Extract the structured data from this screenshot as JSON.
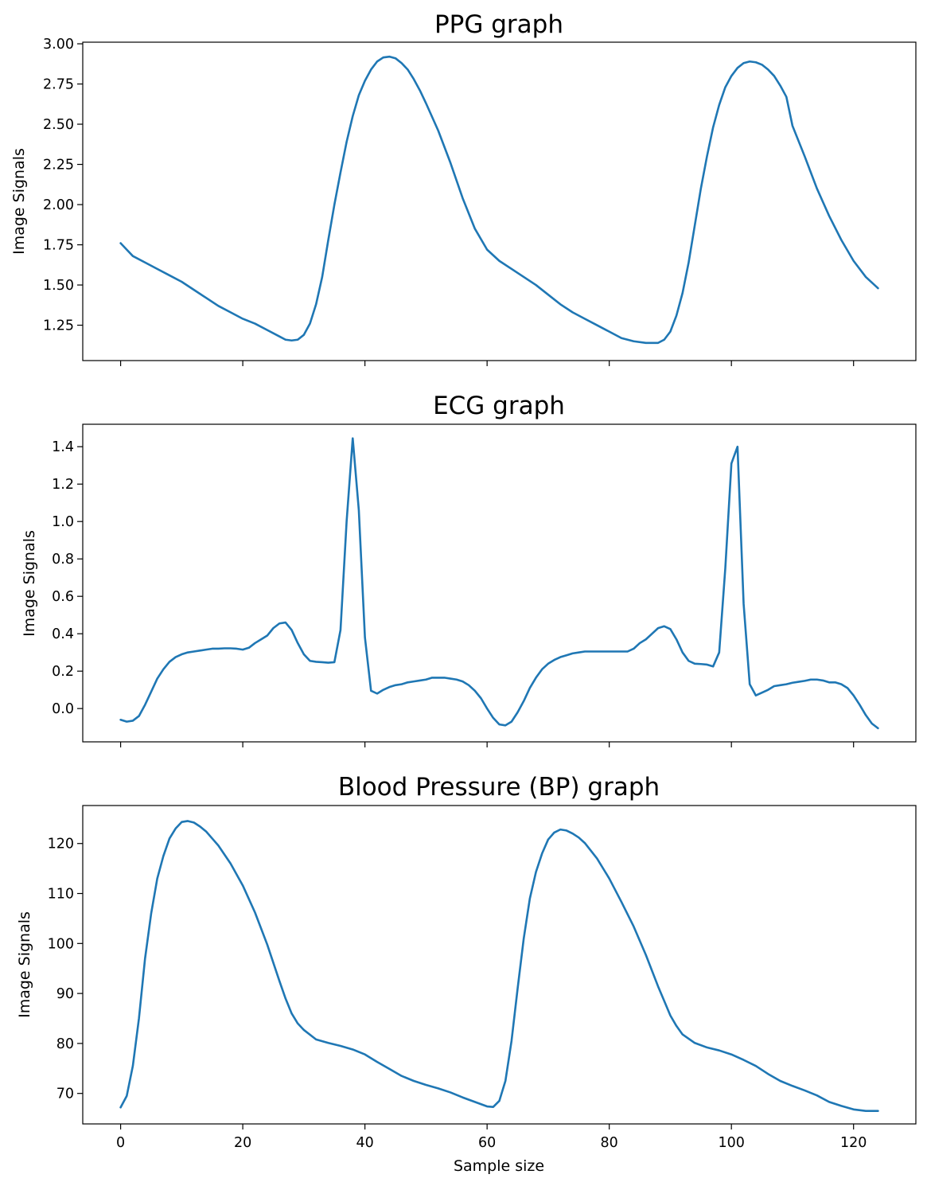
{
  "chart_data": [
    {
      "type": "line",
      "title": "PPG graph",
      "xlabel": "",
      "ylabel": "Image Signals",
      "xlim": [
        -6.2,
        130.2
      ],
      "ylim": [
        1.03,
        3.01
      ],
      "xticks": [
        0,
        20,
        40,
        60,
        80,
        100,
        120
      ],
      "show_xtick_labels": false,
      "yticks": [
        1.25,
        1.5,
        1.75,
        2.0,
        2.25,
        2.5,
        2.75,
        3.0
      ],
      "ytick_labels": [
        "1.25",
        "1.50",
        "1.75",
        "2.00",
        "2.25",
        "2.50",
        "2.75",
        "3.00"
      ],
      "grid": false,
      "color": "#1f77b4",
      "series": [
        {
          "x": [
            0,
            1,
            2,
            4,
            6,
            8,
            10,
            12,
            14,
            16,
            18,
            20,
            22,
            24,
            26,
            27,
            28,
            29,
            30,
            31,
            32,
            33,
            34,
            35,
            36,
            37,
            38,
            39,
            40,
            41,
            42,
            43,
            44,
            45,
            46,
            47,
            48,
            49,
            50,
            52,
            54,
            56,
            58,
            60,
            62,
            64,
            66,
            68,
            70,
            72,
            74,
            76,
            78,
            80,
            82,
            84,
            86,
            88,
            89,
            90,
            91,
            92,
            93,
            94,
            95,
            96,
            97,
            98,
            99,
            100,
            101,
            102,
            103,
            104,
            105,
            106,
            107,
            108,
            109,
            110,
            112,
            114,
            116,
            118,
            120,
            122,
            124
          ],
          "y": [
            1.76,
            1.72,
            1.68,
            1.64,
            1.6,
            1.56,
            1.52,
            1.47,
            1.42,
            1.37,
            1.33,
            1.29,
            1.26,
            1.22,
            1.18,
            1.16,
            1.155,
            1.16,
            1.19,
            1.26,
            1.38,
            1.55,
            1.78,
            2.0,
            2.2,
            2.39,
            2.55,
            2.68,
            2.77,
            2.84,
            2.89,
            2.915,
            2.92,
            2.91,
            2.88,
            2.84,
            2.78,
            2.71,
            2.63,
            2.46,
            2.26,
            2.04,
            1.85,
            1.72,
            1.65,
            1.6,
            1.55,
            1.5,
            1.44,
            1.38,
            1.33,
            1.29,
            1.25,
            1.21,
            1.17,
            1.15,
            1.14,
            1.14,
            1.16,
            1.21,
            1.31,
            1.45,
            1.64,
            1.87,
            2.1,
            2.3,
            2.48,
            2.62,
            2.73,
            2.8,
            2.85,
            2.88,
            2.89,
            2.885,
            2.87,
            2.84,
            2.8,
            2.74,
            2.67,
            2.49,
            2.3,
            2.1,
            1.93,
            1.78,
            1.65,
            1.55,
            1.48
          ]
        }
      ]
    },
    {
      "type": "line",
      "title": "ECG graph",
      "xlabel": "",
      "ylabel": "Image Signals",
      "xlim": [
        -6.2,
        130.2
      ],
      "ylim": [
        -0.178,
        1.52
      ],
      "xticks": [
        0,
        20,
        40,
        60,
        80,
        100,
        120
      ],
      "show_xtick_labels": false,
      "yticks": [
        0.0,
        0.2,
        0.4,
        0.6,
        0.8,
        1.0,
        1.2,
        1.4
      ],
      "ytick_labels": [
        "0.0",
        "0.2",
        "0.4",
        "0.6",
        "0.8",
        "1.0",
        "1.2",
        "1.4"
      ],
      "grid": false,
      "color": "#1f77b4",
      "series": [
        {
          "x": [
            0,
            1,
            2,
            3,
            4,
            5,
            6,
            7,
            8,
            9,
            10,
            11,
            12,
            13,
            14,
            15,
            16,
            17,
            18,
            19,
            20,
            21,
            22,
            23,
            24,
            25,
            26,
            27,
            28,
            29,
            30,
            31,
            32,
            33,
            34,
            35,
            36,
            37,
            38,
            39,
            40,
            41,
            42,
            43,
            44,
            45,
            46,
            47,
            48,
            49,
            50,
            51,
            52,
            53,
            54,
            55,
            56,
            57,
            58,
            59,
            60,
            61,
            62,
            63,
            64,
            65,
            66,
            67,
            68,
            69,
            70,
            71,
            72,
            73,
            74,
            75,
            76,
            77,
            78,
            79,
            80,
            81,
            82,
            83,
            84,
            85,
            86,
            87,
            88,
            89,
            90,
            91,
            92,
            93,
            94,
            95,
            96,
            97,
            98,
            99,
            100,
            101,
            102,
            103,
            104,
            105,
            106,
            107,
            108,
            109,
            110,
            111,
            112,
            113,
            114,
            115,
            116,
            117,
            118,
            119,
            120,
            121,
            122,
            123,
            124
          ],
          "y": [
            -0.06,
            -0.07,
            -0.065,
            -0.04,
            0.02,
            0.09,
            0.16,
            0.21,
            0.25,
            0.275,
            0.29,
            0.3,
            0.305,
            0.31,
            0.315,
            0.32,
            0.32,
            0.322,
            0.322,
            0.32,
            0.315,
            0.325,
            0.35,
            0.37,
            0.39,
            0.43,
            0.455,
            0.46,
            0.42,
            0.35,
            0.29,
            0.255,
            0.25,
            0.248,
            0.245,
            0.248,
            0.42,
            1.0,
            1.445,
            1.06,
            0.38,
            0.095,
            0.08,
            0.1,
            0.115,
            0.125,
            0.13,
            0.14,
            0.145,
            0.15,
            0.155,
            0.165,
            0.165,
            0.165,
            0.16,
            0.155,
            0.145,
            0.125,
            0.095,
            0.055,
            0.0,
            -0.05,
            -0.085,
            -0.09,
            -0.07,
            -0.02,
            0.04,
            0.11,
            0.165,
            0.21,
            0.24,
            0.26,
            0.275,
            0.285,
            0.295,
            0.3,
            0.305,
            0.305,
            0.305,
            0.305,
            0.305,
            0.305,
            0.305,
            0.305,
            0.32,
            0.35,
            0.37,
            0.4,
            0.43,
            0.44,
            0.425,
            0.37,
            0.3,
            0.255,
            0.24,
            0.238,
            0.235,
            0.225,
            0.3,
            0.75,
            1.31,
            1.4,
            0.56,
            0.13,
            0.07,
            0.085,
            0.1,
            0.12,
            0.125,
            0.13,
            0.138,
            0.143,
            0.148,
            0.155,
            0.155,
            0.15,
            0.14,
            0.14,
            0.13,
            0.11,
            0.07,
            0.02,
            -0.035,
            -0.08,
            -0.105
          ]
        }
      ]
    },
    {
      "type": "line",
      "title": "Blood Pressure (BP) graph",
      "xlabel": "Sample size",
      "ylabel": "Image Signals",
      "xlim": [
        -6.2,
        130.2
      ],
      "ylim": [
        63.9,
        127.6
      ],
      "xticks": [
        0,
        20,
        40,
        60,
        80,
        100,
        120
      ],
      "xtick_labels": [
        "0",
        "20",
        "40",
        "60",
        "80",
        "100",
        "120"
      ],
      "show_xtick_labels": true,
      "yticks": [
        70,
        80,
        90,
        100,
        110,
        120
      ],
      "ytick_labels": [
        "70",
        "80",
        "90",
        "100",
        "110",
        "120"
      ],
      "grid": false,
      "color": "#1f77b4",
      "series": [
        {
          "x": [
            0,
            1,
            2,
            3,
            4,
            5,
            6,
            7,
            8,
            9,
            10,
            11,
            12,
            13,
            14,
            15,
            16,
            18,
            20,
            22,
            24,
            26,
            27,
            28,
            29,
            30,
            32,
            34,
            36,
            38,
            40,
            42,
            44,
            46,
            48,
            50,
            52,
            54,
            56,
            58,
            60,
            61,
            62,
            63,
            64,
            65,
            66,
            67,
            68,
            69,
            70,
            71,
            72,
            73,
            74,
            75,
            76,
            78,
            80,
            82,
            84,
            86,
            88,
            89,
            90,
            91,
            92,
            94,
            96,
            98,
            100,
            102,
            104,
            106,
            108,
            110,
            112,
            114,
            116,
            118,
            120,
            122,
            124
          ],
          "y": [
            67.2,
            69.5,
            75.5,
            85,
            97,
            106,
            113,
            117.5,
            121,
            123,
            124.3,
            124.5,
            124.2,
            123.4,
            122.4,
            121,
            119.6,
            116,
            111.6,
            106.2,
            99.8,
            92.5,
            89,
            86,
            84,
            82.7,
            80.8,
            80.1,
            79.5,
            78.8,
            77.8,
            76.3,
            74.9,
            73.5,
            72.5,
            71.7,
            71,
            70.2,
            69.2,
            68.3,
            67.4,
            67.3,
            68.5,
            72.5,
            80.5,
            91,
            101,
            109,
            114.3,
            118,
            120.8,
            122.2,
            122.8,
            122.6,
            122,
            121.2,
            120.1,
            117,
            113,
            108.3,
            103.4,
            97.7,
            91.4,
            88.5,
            85.6,
            83.5,
            81.8,
            80.1,
            79.2,
            78.6,
            77.8,
            76.7,
            75.5,
            73.9,
            72.5,
            71.5,
            70.6,
            69.6,
            68.3,
            67.5,
            66.8,
            66.5,
            66.5
          ]
        }
      ]
    }
  ]
}
